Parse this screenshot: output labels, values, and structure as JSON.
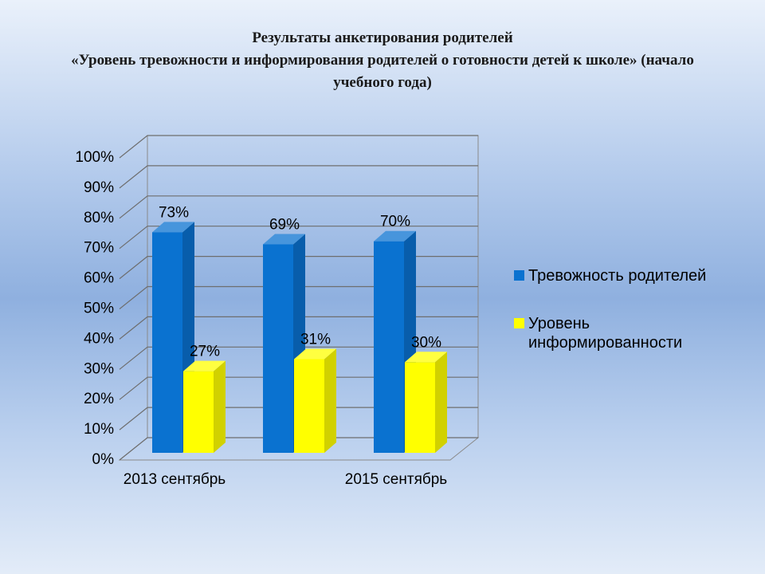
{
  "chart_data": {
    "type": "bar3d",
    "title": "Результаты  анкетирования родителей",
    "subtitle": "«Уровень тревожности и информирования  родителей о готовности детей к школе»  (начало учебного года)",
    "categories": [
      "2013 сентябрь",
      null,
      "2015 сентябрь"
    ],
    "series": [
      {
        "name": "Тревожность родителей",
        "color": "#0a72d0",
        "values": [
          73,
          69,
          70
        ],
        "value_labels": [
          "73%",
          "69%",
          "70%"
        ]
      },
      {
        "name": "Уровень информированности",
        "color": "#ffff00",
        "values": [
          27,
          31,
          30
        ],
        "value_labels": [
          "27%",
          "31%",
          "30%"
        ]
      }
    ],
    "ylim": [
      0,
      100
    ],
    "yticks": [
      {
        "value": 0,
        "label": "0%"
      },
      {
        "value": 10,
        "label": "10%"
      },
      {
        "value": 20,
        "label": "20%"
      },
      {
        "value": 30,
        "label": "30%"
      },
      {
        "value": 40,
        "label": "40%"
      },
      {
        "value": 50,
        "label": "50%"
      },
      {
        "value": 60,
        "label": "60%"
      },
      {
        "value": 70,
        "label": "70%"
      },
      {
        "value": 80,
        "label": "80%"
      },
      {
        "value": 90,
        "label": "90%"
      },
      {
        "value": 100,
        "label": "100%"
      }
    ],
    "grid": true,
    "legend": "right"
  }
}
